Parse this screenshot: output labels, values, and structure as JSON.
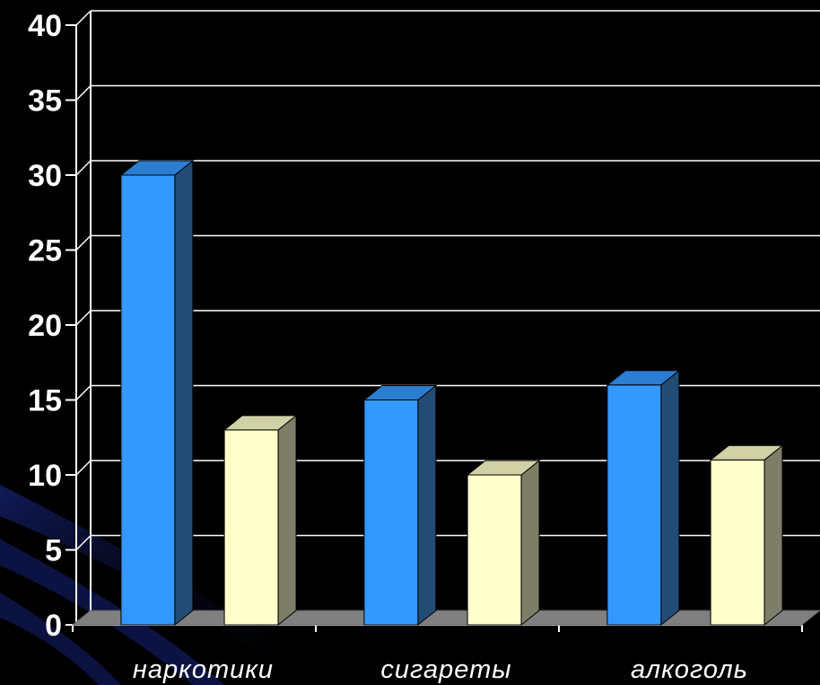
{
  "chart_data": {
    "type": "bar",
    "title": "",
    "xlabel": "",
    "ylabel": "",
    "ylim": [
      0,
      40
    ],
    "yticks": [
      "0",
      "5",
      "10",
      "15",
      "20",
      "25",
      "30",
      "35",
      "40"
    ],
    "categories": [
      "наркотики",
      "сигареты",
      "алкоголь"
    ],
    "series": [
      {
        "values": [
          30,
          15,
          16
        ],
        "color": "#3399ff"
      },
      {
        "values": [
          13,
          10,
          11
        ],
        "color": "#ffffcc"
      }
    ],
    "grid": true,
    "legend": "none",
    "style": "3d-columns"
  },
  "colors": {
    "background": "#000000",
    "gridline": "#ffffff",
    "floor": "#808080",
    "text": "#ffffff"
  }
}
